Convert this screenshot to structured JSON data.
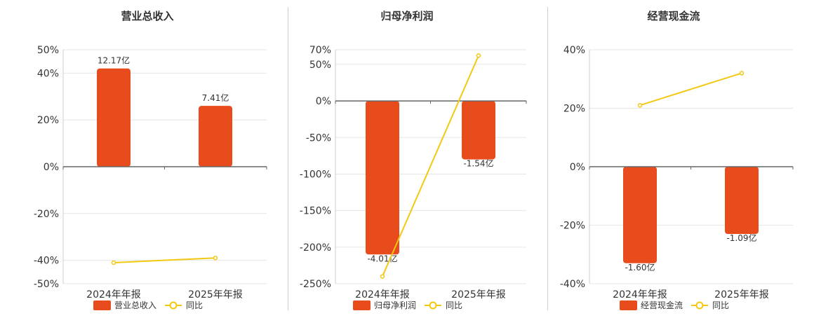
{
  "colors": {
    "bar": "#e84c1c",
    "line": "#f2c811",
    "grid": "#e6e6e6",
    "axis": "#666666",
    "divider": "#cfcfcf",
    "text": "#333333"
  },
  "chart_data": [
    {
      "type": "bar",
      "title": "营业总收入",
      "categories": [
        "2024年年报",
        "2025年年报"
      ],
      "bar_labels": [
        "12.17亿",
        "7.41亿"
      ],
      "bar_values": [
        12.17,
        7.41
      ],
      "bar_unit": "亿",
      "bar_height_percent": [
        42,
        26
      ],
      "yoy_percent": [
        -41,
        -39
      ],
      "ylim": [
        -50,
        50
      ],
      "yticks": [
        50,
        40,
        20,
        0,
        -20,
        -40,
        -50
      ],
      "ytick_labels": [
        "50%",
        "40%",
        "20%",
        "0%",
        "-20%",
        "-40%",
        "-50%"
      ],
      "legend": [
        "营业总收入",
        "同比"
      ],
      "legend_position": "bottom"
    },
    {
      "type": "bar",
      "title": "归母净利润",
      "categories": [
        "2024年年报",
        "2025年年报"
      ],
      "bar_labels": [
        "-4.01亿",
        "-1.54亿"
      ],
      "bar_values": [
        -4.01,
        -1.54
      ],
      "bar_unit": "亿",
      "bar_height_percent": [
        -210,
        -80
      ],
      "yoy_percent": [
        -240,
        62
      ],
      "ylim": [
        -250,
        70
      ],
      "yticks": [
        70,
        50,
        0,
        -50,
        -100,
        -150,
        -200,
        -250
      ],
      "ytick_labels": [
        "70%",
        "50%",
        "0%",
        "-50%",
        "-100%",
        "-150%",
        "-200%",
        "-250%"
      ],
      "legend": [
        "归母净利润",
        "同比"
      ],
      "legend_position": "bottom"
    },
    {
      "type": "bar",
      "title": "经营现金流",
      "categories": [
        "2024年年报",
        "2025年年报"
      ],
      "bar_labels": [
        "-1.60亿",
        "-1.09亿"
      ],
      "bar_values": [
        -1.6,
        -1.09
      ],
      "bar_unit": "亿",
      "bar_height_percent": [
        -33,
        -23
      ],
      "yoy_percent": [
        21,
        32
      ],
      "ylim": [
        -40,
        40
      ],
      "yticks": [
        40,
        20,
        0,
        -20,
        -40
      ],
      "ytick_labels": [
        "40%",
        "20%",
        "0%",
        "-20%",
        "-40%"
      ],
      "legend": [
        "经营现金流",
        "同比"
      ],
      "legend_position": "bottom"
    }
  ]
}
